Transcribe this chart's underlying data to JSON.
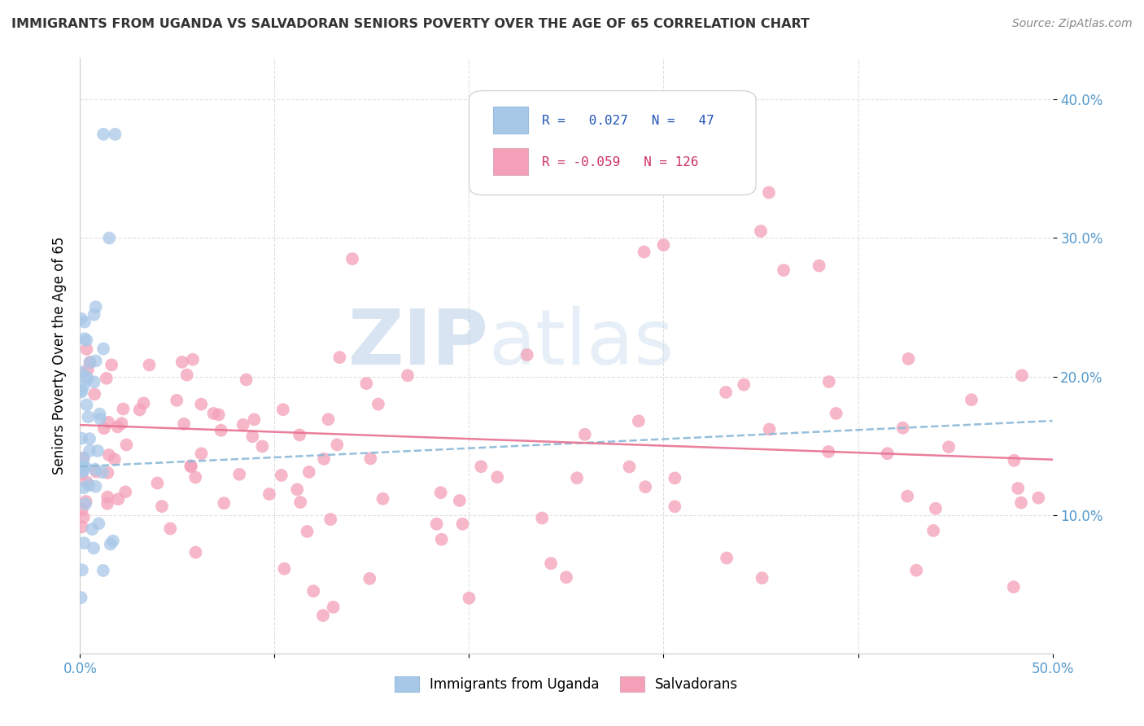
{
  "title": "IMMIGRANTS FROM UGANDA VS SALVADORAN SENIORS POVERTY OVER THE AGE OF 65 CORRELATION CHART",
  "source": "Source: ZipAtlas.com",
  "ylabel": "Seniors Poverty Over the Age of 65",
  "xlim": [
    0.0,
    0.5
  ],
  "ylim": [
    0.0,
    0.43
  ],
  "yticks": [
    0.1,
    0.2,
    0.3,
    0.4
  ],
  "ytick_labels": [
    "10.0%",
    "20.0%",
    "30.0%",
    "40.0%"
  ],
  "color_uganda": "#a8c8e8",
  "color_salvador": "#f4a0b8",
  "trendline_uganda_color": "#8ab8d8",
  "trendline_salvador_color": "#e87090",
  "watermark_color": "#ccddf0",
  "background_color": "#ffffff",
  "grid_color": "#dddddd",
  "title_color": "#333333",
  "source_color": "#888888",
  "tick_color": "#5599cc",
  "legend_text_color_uganda": "#2255bb",
  "legend_text_color_salvador": "#cc3366"
}
